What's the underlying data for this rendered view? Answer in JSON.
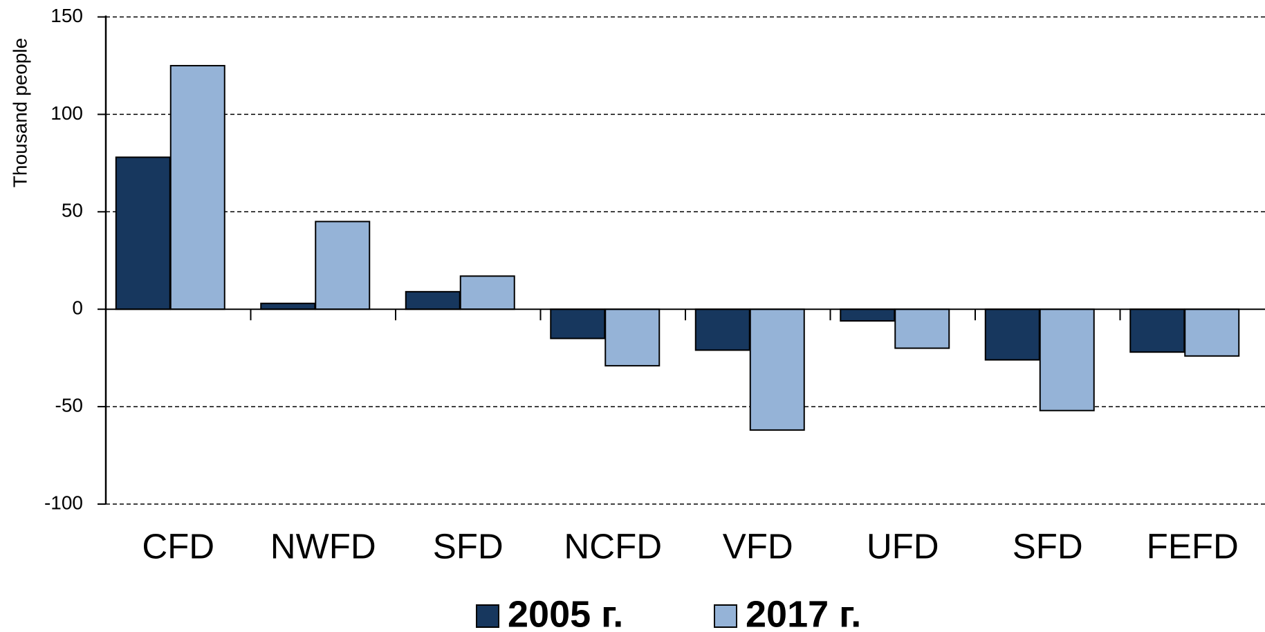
{
  "chart_data": {
    "type": "bar",
    "y_label": "Thousand people",
    "categories": [
      "CFD",
      "NWFD",
      "SFD",
      "NCFD",
      "VFD",
      "UFD",
      "SFD",
      "FEFD"
    ],
    "series": [
      {
        "name": "2005 г.",
        "color": "#17375e",
        "values": [
          78,
          3,
          9,
          -15,
          -21,
          -6,
          -26,
          -22
        ]
      },
      {
        "name": "2017 г.",
        "color": "#95b3d7",
        "values": [
          125,
          45,
          17,
          -29,
          -62,
          -20,
          -52,
          -24
        ]
      }
    ],
    "ylim": [
      -100,
      150
    ],
    "yticks": [
      -100,
      -50,
      0,
      50,
      100,
      150
    ],
    "grid": true
  }
}
